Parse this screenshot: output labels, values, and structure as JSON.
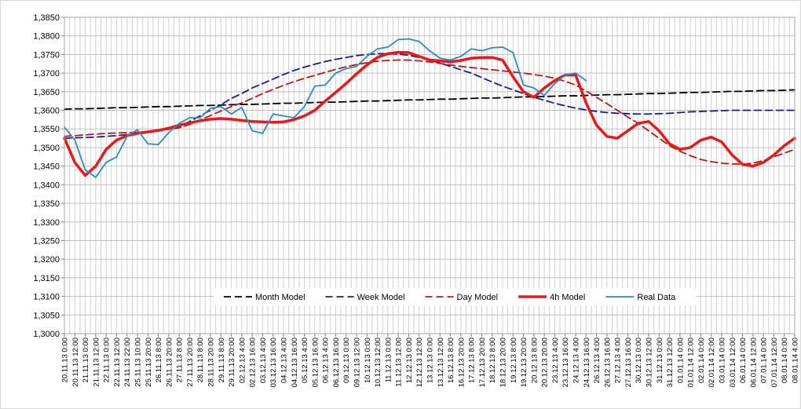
{
  "chart_data": {
    "type": "line",
    "categories": [
      "20.11.13 0:00",
      "20.11.13 12:00",
      "21.11.13 0:00",
      "21.11.13 12:00",
      "22.11.13 0:00",
      "22.11.13 12:00",
      "24.11.13 22:00",
      "25.11.13 10:00",
      "25.11.13 20:00",
      "26.11.13 8:00",
      "26.11.13 20:00",
      "27.11.13 8:00",
      "27.11.13 20:00",
      "28.11.13 8:00",
      "28.11.13 20:00",
      "29.11.13 8:00",
      "29.11.13 20:00",
      "02.12.13 4:00",
      "02.12.13 16:00",
      "03.12.13 4:00",
      "03.12.13 16:00",
      "04.12.13 4:00",
      "04.12.13 16:00",
      "05.12.13 4:00",
      "05.12.13 16:00",
      "06.12.13 4:00",
      "06.12.13 16:00",
      "09.12.13 0:00",
      "09.12.13 12:00",
      "10.12.13 0:00",
      "10.12.13 12:00",
      "11.12.13 0:00",
      "11.12.13 12:00",
      "12.12.13 0:00",
      "12.12.13 12:00",
      "13.12.13 0:00",
      "13.12.13 12:00",
      "16.12.13 8:00",
      "16.12.13 20:00",
      "17.12.13 8:00",
      "17.12.13 20:00",
      "18.12.13 8:00",
      "18.12.13 20:00",
      "19.12.13 8:00",
      "19.12.13 20:00",
      "20.12.13 8:00",
      "20.12.13 20:00",
      "23.12.13 4:00",
      "23.12.13 16:00",
      "24.12.13 4:00",
      "24.12.13 16:00",
      "26.12.13 4:00",
      "26.12.13 16:00",
      "27.12.13 4:00",
      "27.12.13 16:00",
      "30.12.13 0:00",
      "30.12.13 12:00",
      "31.12.13 0:00",
      "31.12.13 12:00",
      "01.01.14 0:00",
      "01.01.14 12:00",
      "02.01.14 0:00",
      "02.01.14 12:00",
      "03.01.14 0:00",
      "03.01.14 12:00",
      "06.01.14 0:00",
      "06.01.14 12:00",
      "07.01.14 0:00",
      "07.01.14 12:00",
      "08.01.14 0:00",
      "08.01.14 4:00"
    ],
    "series": [
      {
        "name": "Month Model",
        "color": "#000000",
        "style": "dashed",
        "linewidth": 1.8,
        "values": [
          1.3603,
          1.3604,
          1.3604,
          1.3605,
          1.3606,
          1.3607,
          1.3607,
          1.3608,
          1.3609,
          1.361,
          1.361,
          1.3611,
          1.3612,
          1.3613,
          1.3613,
          1.3614,
          1.3615,
          1.3616,
          1.3616,
          1.3617,
          1.3618,
          1.3619,
          1.3619,
          1.362,
          1.3621,
          1.3622,
          1.3622,
          1.3623,
          1.3624,
          1.3625,
          1.3625,
          1.3626,
          1.3627,
          1.3628,
          1.3628,
          1.3629,
          1.363,
          1.363,
          1.3631,
          1.3632,
          1.3633,
          1.3633,
          1.3634,
          1.3635,
          1.3636,
          1.3636,
          1.3637,
          1.3638,
          1.3639,
          1.3639,
          1.364,
          1.3641,
          1.3642,
          1.3642,
          1.3643,
          1.3644,
          1.3645,
          1.3645,
          1.3646,
          1.3647,
          1.3648,
          1.3648,
          1.3649,
          1.365,
          1.3651,
          1.3651,
          1.3652,
          1.3653,
          1.3653,
          1.3654,
          1.3655
        ]
      },
      {
        "name": "Week Model",
        "color": "#1c1c8c",
        "style": "dashed",
        "linewidth": 1.8,
        "values": [
          1.3525,
          1.3526,
          1.3527,
          1.3528,
          1.353,
          1.3532,
          1.3535,
          1.3538,
          1.3542,
          1.3546,
          1.3551,
          1.3557,
          1.357,
          1.3585,
          1.36,
          1.3615,
          1.3632,
          1.3645,
          1.366,
          1.3672,
          1.3684,
          1.3696,
          1.3707,
          1.3716,
          1.3724,
          1.3731,
          1.3737,
          1.3742,
          1.3747,
          1.375,
          1.3752,
          1.3752,
          1.3751,
          1.3748,
          1.3742,
          1.3735,
          1.3727,
          1.3718,
          1.3709,
          1.37,
          1.3688,
          1.3676,
          1.3665,
          1.3655,
          1.3645,
          1.3635,
          1.3627,
          1.3619,
          1.3612,
          1.3606,
          1.3601,
          1.3597,
          1.3594,
          1.3592,
          1.3591,
          1.359,
          1.359,
          1.3591,
          1.3592,
          1.3594,
          1.3596,
          1.3597,
          1.3598,
          1.3599,
          1.36,
          1.36,
          1.36,
          1.36,
          1.36,
          1.36,
          1.36
        ]
      },
      {
        "name": "Day Model",
        "color": "#b01c1c",
        "style": "dashed",
        "linewidth": 1.8,
        "values": [
          1.353,
          1.3532,
          1.3534,
          1.3536,
          1.3538,
          1.3539,
          1.354,
          1.3541,
          1.3543,
          1.3546,
          1.3549,
          1.3553,
          1.3562,
          1.3574,
          1.3586,
          1.3598,
          1.361,
          1.362,
          1.3632,
          1.3645,
          1.3656,
          1.3667,
          1.3677,
          1.3686,
          1.3694,
          1.3702,
          1.371,
          1.3717,
          1.3723,
          1.3728,
          1.3732,
          1.3734,
          1.3735,
          1.3735,
          1.3733,
          1.373,
          1.3726,
          1.3722,
          1.3718,
          1.3715,
          1.3712,
          1.3709,
          1.3706,
          1.3703,
          1.37,
          1.3696,
          1.3692,
          1.3686,
          1.3678,
          1.3668,
          1.3652,
          1.3635,
          1.3618,
          1.36,
          1.3582,
          1.3565,
          1.3545,
          1.3525,
          1.3505,
          1.349,
          1.3478,
          1.3468,
          1.3462,
          1.3458,
          1.3456,
          1.3455,
          1.3458,
          1.3465,
          1.3475,
          1.3485,
          1.3495
        ]
      },
      {
        "name": "4h Model",
        "color": "#e8191b",
        "style": "solid",
        "linewidth": 3.5,
        "values": [
          1.3525,
          1.346,
          1.3425,
          1.345,
          1.3495,
          1.352,
          1.3532,
          1.3538,
          1.3542,
          1.3546,
          1.3552,
          1.356,
          1.3566,
          1.3572,
          1.3576,
          1.3578,
          1.3576,
          1.3573,
          1.357,
          1.3569,
          1.3568,
          1.3569,
          1.3575,
          1.3585,
          1.36,
          1.3625,
          1.3648,
          1.3672,
          1.3698,
          1.3722,
          1.3742,
          1.3752,
          1.3756,
          1.3755,
          1.3745,
          1.3735,
          1.3733,
          1.373,
          1.3734,
          1.374,
          1.3742,
          1.3742,
          1.3735,
          1.369,
          1.365,
          1.3635,
          1.366,
          1.368,
          1.3695,
          1.3695,
          1.362,
          1.356,
          1.353,
          1.3525,
          1.3545,
          1.3565,
          1.357,
          1.3545,
          1.351,
          1.3495,
          1.35,
          1.352,
          1.3528,
          1.3515,
          1.348,
          1.3455,
          1.345,
          1.346,
          1.348,
          1.3505,
          1.3525
        ]
      },
      {
        "name": "Real Data",
        "color": "#2b8cc0",
        "style": "solid",
        "linewidth": 1.8,
        "values": [
          1.3555,
          1.352,
          1.344,
          1.342,
          1.346,
          1.3475,
          1.353,
          1.3548,
          1.351,
          1.3508,
          1.354,
          1.3565,
          1.358,
          1.358,
          1.3605,
          1.361,
          1.359,
          1.3608,
          1.3545,
          1.3538,
          1.359,
          1.3585,
          1.358,
          1.361,
          1.3665,
          1.3668,
          1.37,
          1.3712,
          1.3718,
          1.3745,
          1.3765,
          1.377,
          1.379,
          1.3792,
          1.3785,
          1.376,
          1.374,
          1.3735,
          1.3745,
          1.3765,
          1.376,
          1.3768,
          1.377,
          1.3755,
          1.3668,
          1.366,
          1.364,
          1.3672,
          1.3695,
          1.37,
          1.368,
          null,
          null,
          null,
          null,
          null,
          null,
          null,
          null,
          null,
          null,
          null,
          null,
          null,
          null,
          null,
          null,
          null,
          null,
          null,
          null
        ]
      }
    ],
    "ylim": [
      1.3,
      1.385
    ],
    "yticks": [
      {
        "value": 1.3,
        "label": "1,3000"
      },
      {
        "value": 1.305,
        "label": "1,3050"
      },
      {
        "value": 1.31,
        "label": "1,3100"
      },
      {
        "value": 1.315,
        "label": "1,3150"
      },
      {
        "value": 1.32,
        "label": "1,3200"
      },
      {
        "value": 1.325,
        "label": "1,3250"
      },
      {
        "value": 1.33,
        "label": "1,3300"
      },
      {
        "value": 1.335,
        "label": "1,3350"
      },
      {
        "value": 1.34,
        "label": "1,3400"
      },
      {
        "value": 1.345,
        "label": "1,3450"
      },
      {
        "value": 1.35,
        "label": "1,3500"
      },
      {
        "value": 1.355,
        "label": "1,3550"
      },
      {
        "value": 1.36,
        "label": "1,3600"
      },
      {
        "value": 1.365,
        "label": "1,3650"
      },
      {
        "value": 1.37,
        "label": "1,3700"
      },
      {
        "value": 1.375,
        "label": "1,3750"
      },
      {
        "value": 1.38,
        "label": "1,3800"
      },
      {
        "value": 1.385,
        "label": "1,3850"
      }
    ],
    "grid": true,
    "legend": "bottom"
  }
}
